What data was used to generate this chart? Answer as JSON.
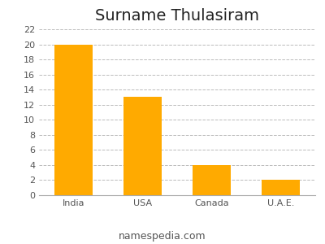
{
  "title": "Surname Thulasiram",
  "categories": [
    "India",
    "USA",
    "Canada",
    "U.A.E."
  ],
  "values": [
    20,
    13,
    4,
    2
  ],
  "bar_color": "#FFAA00",
  "ylim": [
    0,
    22
  ],
  "yticks": [
    0,
    2,
    4,
    6,
    8,
    10,
    12,
    14,
    16,
    18,
    20,
    22
  ],
  "grid_color": "#bbbbbb",
  "background_color": "#ffffff",
  "title_fontsize": 14,
  "tick_fontsize": 8,
  "footer_text": "namespedia.com",
  "footer_fontsize": 9,
  "bar_width": 0.55
}
